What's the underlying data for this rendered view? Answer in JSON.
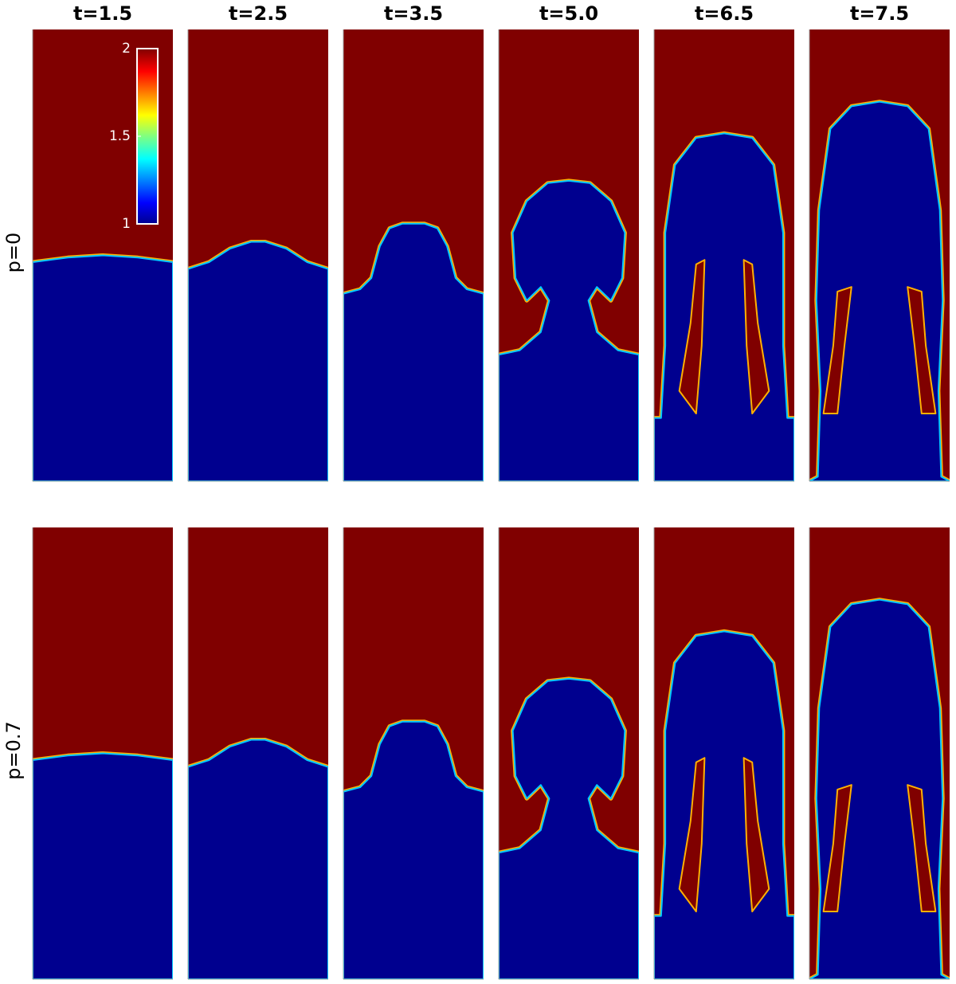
{
  "chart_data": {
    "type": "field-snapshots",
    "columns": [
      "t=1.5",
      "t=2.5",
      "t=3.5",
      "t=5.0",
      "t=6.5",
      "t=7.5"
    ],
    "rows": [
      "p=0",
      "p=0.7"
    ],
    "colorbar": {
      "clim": [
        1,
        2
      ],
      "ticks": [
        1,
        1.5,
        2
      ]
    }
  }
}
